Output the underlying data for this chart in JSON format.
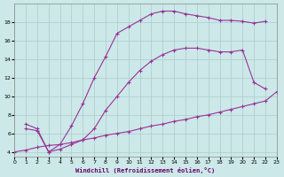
{
  "background_color": "#cce8e8",
  "line_color": "#993399",
  "grid_color": "#aacccc",
  "xlabel": "Windchill (Refroidissement éolien,°C)",
  "xlim": [
    0,
    23
  ],
  "ylim": [
    3.5,
    20
  ],
  "yticks": [
    4,
    6,
    8,
    10,
    12,
    14,
    16,
    18
  ],
  "xticks": [
    0,
    1,
    2,
    3,
    4,
    5,
    6,
    7,
    8,
    9,
    10,
    11,
    12,
    13,
    14,
    15,
    16,
    17,
    18,
    19,
    20,
    21,
    22,
    23
  ],
  "line1_x": [
    1,
    2,
    3,
    4,
    5,
    6,
    7,
    8,
    9,
    10,
    11,
    12,
    13,
    14,
    15,
    16,
    17,
    18,
    19,
    20,
    21,
    22
  ],
  "line1_y": [
    7.0,
    6.5,
    4.0,
    4.8,
    6.8,
    9.2,
    12.0,
    14.3,
    16.8,
    17.5,
    18.2,
    18.9,
    19.2,
    19.2,
    18.9,
    18.7,
    18.5,
    18.2,
    18.2,
    18.1,
    17.9,
    18.1
  ],
  "line2_x": [
    1,
    2,
    3,
    4,
    5,
    6,
    7,
    8,
    9,
    10,
    11,
    12,
    13,
    14,
    15,
    16,
    17,
    18,
    19,
    20,
    21,
    22
  ],
  "line2_y": [
    6.5,
    6.3,
    4.0,
    4.3,
    4.8,
    5.3,
    6.5,
    8.5,
    10.0,
    11.5,
    12.8,
    13.8,
    14.5,
    15.0,
    15.2,
    15.2,
    15.0,
    14.8,
    14.8,
    15.0,
    11.5,
    10.8
  ],
  "line3_x": [
    0,
    1,
    2,
    3,
    4,
    5,
    6,
    7,
    8,
    9,
    10,
    11,
    12,
    13,
    14,
    15,
    16,
    17,
    18,
    19,
    20,
    21,
    22,
    23
  ],
  "line3_y": [
    4.0,
    4.2,
    4.5,
    4.7,
    4.8,
    5.0,
    5.3,
    5.5,
    5.8,
    6.0,
    6.2,
    6.5,
    6.8,
    7.0,
    7.3,
    7.5,
    7.8,
    8.0,
    8.3,
    8.6,
    8.9,
    9.2,
    9.5,
    10.5
  ]
}
